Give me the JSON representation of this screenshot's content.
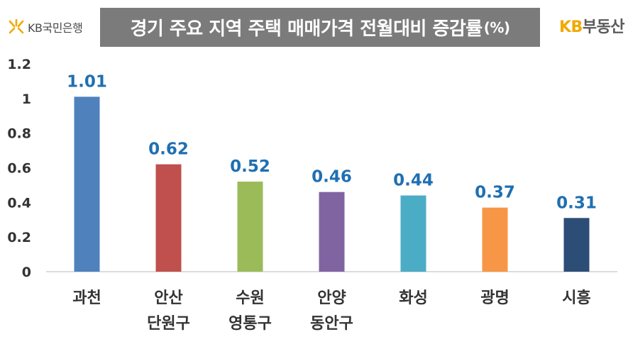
{
  "header": {
    "logo_left_text": "KB국민은행",
    "title": "경기 주요 지역 주택 매매가격 전월대비 증감률",
    "title_unit": "(%)",
    "logo_right_prefix": "KB",
    "logo_right_text": "부동산",
    "brand_color": "#f2a900",
    "star_icon": "kb-star-icon"
  },
  "chart_data": {
    "type": "bar",
    "title": "경기 주요 지역 주택 매매가격 전월대비 증감률(%)",
    "categories": [
      [
        "과천"
      ],
      [
        "안산",
        "단원구"
      ],
      [
        "수원",
        "영통구"
      ],
      [
        "안양",
        "동안구"
      ],
      [
        "화성"
      ],
      [
        "광명"
      ],
      [
        "시흥"
      ]
    ],
    "values": [
      1.01,
      0.62,
      0.52,
      0.46,
      0.44,
      0.37,
      0.31
    ],
    "value_labels": [
      "1.01",
      "0.62",
      "0.52",
      "0.46",
      "0.44",
      "0.37",
      "0.31"
    ],
    "colors": [
      "#4f81bd",
      "#c0504d",
      "#9bbb59",
      "#8064a2",
      "#4bacc6",
      "#f79646",
      "#2c4d75"
    ],
    "ylim": [
      0,
      1.2
    ],
    "yticks": [
      0,
      0.2,
      0.4,
      0.6,
      0.8,
      1,
      1.2
    ],
    "ytick_labels": [
      "0",
      "0.2",
      "0.4",
      "0.6",
      "0.8",
      "1",
      "1.2"
    ],
    "grid": false,
    "xlabel": "",
    "ylabel": ""
  }
}
